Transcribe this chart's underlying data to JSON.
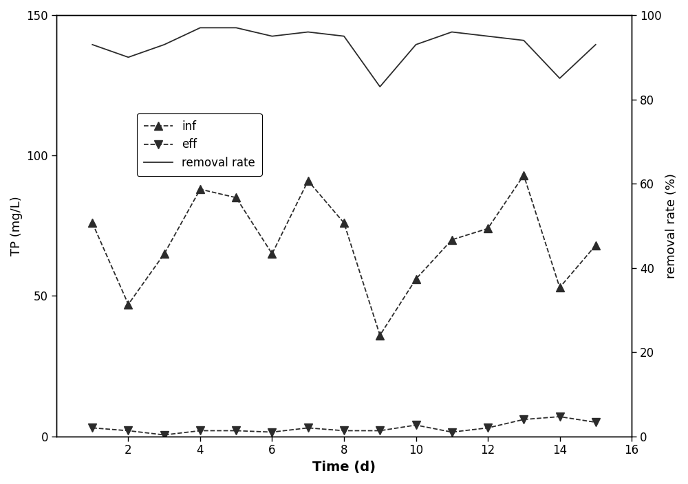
{
  "time": [
    1,
    2,
    3,
    4,
    5,
    6,
    7,
    8,
    9,
    10,
    11,
    12,
    13,
    14,
    15
  ],
  "inf": [
    76,
    47,
    65,
    88,
    85,
    65,
    91,
    76,
    36,
    56,
    70,
    74,
    93,
    53,
    68
  ],
  "eff": [
    3,
    2,
    0.5,
    2,
    2,
    1.5,
    3,
    2,
    2,
    4,
    1.5,
    3,
    6,
    7,
    5
  ],
  "removal_rate": [
    93,
    90,
    93,
    97,
    97,
    95,
    96,
    95,
    83,
    93,
    96,
    95,
    94,
    85,
    93
  ],
  "left_ylabel": "TP (mg/L)",
  "right_ylabel": "removal rate (%)",
  "xlabel": "Time (d)",
  "ylim_left": [
    0,
    150
  ],
  "ylim_right": [
    0,
    100
  ],
  "xlim": [
    0,
    16
  ],
  "yticks_left": [
    0,
    50,
    100,
    150
  ],
  "yticks_right": [
    0,
    20,
    40,
    60,
    80,
    100
  ],
  "xticks": [
    2,
    4,
    6,
    8,
    10,
    12,
    14,
    16
  ],
  "line_color": "#2b2b2b",
  "legend_inf": "inf",
  "legend_eff": "eff",
  "legend_removal": "removal rate",
  "figsize": [
    10.0,
    7.04
  ],
  "dpi": 100,
  "marker_size": 8,
  "linewidth": 1.3
}
